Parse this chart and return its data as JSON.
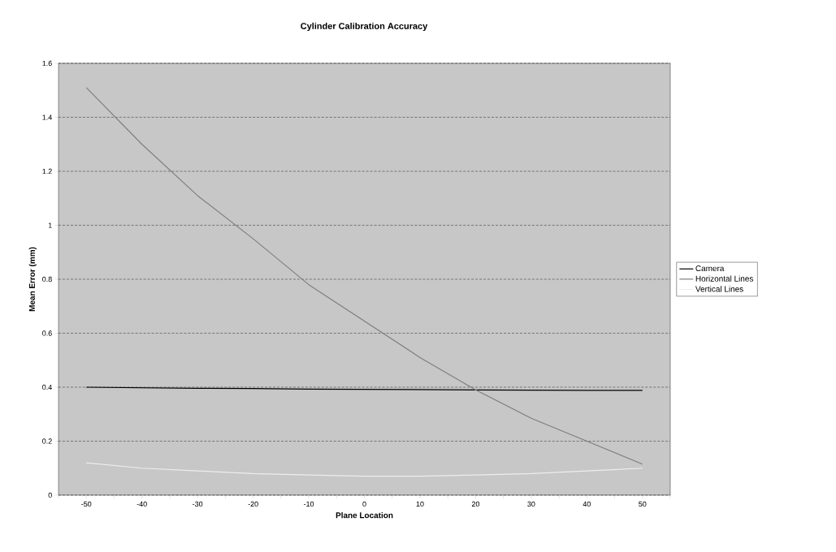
{
  "chart_data": {
    "type": "line",
    "title": "Cylinder Calibration Accuracy",
    "xlabel": "Plane Location",
    "ylabel": "Mean Error (mm)",
    "x": [
      -50,
      -40,
      -30,
      -20,
      -10,
      0,
      10,
      20,
      30,
      40,
      50
    ],
    "series": [
      {
        "name": "Camera",
        "color": "#000000",
        "values": [
          0.4,
          0.398,
          0.396,
          0.395,
          0.393,
          0.392,
          0.391,
          0.39,
          0.389,
          0.388,
          0.388
        ]
      },
      {
        "name": "Horizontal Lines",
        "color": "#7f7f7f",
        "values": [
          1.51,
          1.3,
          1.11,
          0.95,
          0.78,
          0.645,
          0.51,
          0.39,
          0.285,
          0.2,
          0.115
        ]
      },
      {
        "name": "Vertical Lines",
        "color": "#ededed",
        "values": [
          0.12,
          0.1,
          0.09,
          0.08,
          0.075,
          0.07,
          0.07,
          0.075,
          0.08,
          0.09,
          0.1
        ]
      }
    ],
    "xlim": [
      -55,
      55
    ],
    "xticks": [
      {
        "value": -55,
        "label": null
      },
      -50,
      {
        "value": -45,
        "label": null
      },
      -40,
      {
        "value": -35,
        "label": null
      },
      -30,
      {
        "value": -25,
        "label": null
      },
      -20,
      {
        "value": -15,
        "label": null
      },
      -10,
      {
        "value": -5,
        "label": null
      },
      0,
      {
        "value": 5,
        "label": null
      },
      10,
      {
        "value": 15,
        "label": null
      },
      20,
      {
        "value": 25,
        "label": null
      },
      30,
      {
        "value": 35,
        "label": null
      },
      40,
      {
        "value": 45,
        "label": null
      },
      50,
      {
        "value": 55,
        "label": null
      }
    ],
    "ylim": [
      0,
      1.6
    ],
    "yticks": [
      0,
      0.2,
      0.4,
      0.6,
      0.8,
      1,
      1.2,
      1.4,
      1.6
    ],
    "grid": "y",
    "legend": "right",
    "marker": "none",
    "line_style": "solid"
  }
}
